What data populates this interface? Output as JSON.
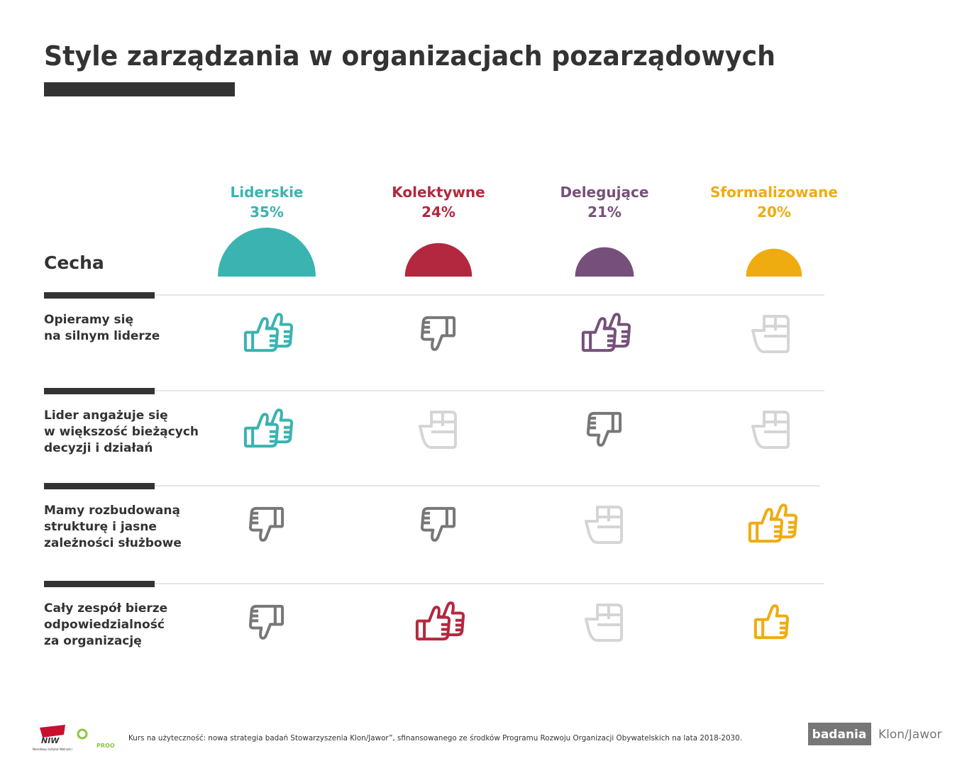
{
  "header": {
    "title": "Style zarządzania w organizacjach pozarządowych"
  },
  "styles": [
    {
      "name": "Liderskie",
      "value": 35,
      "value_label": "35%",
      "color": "#3ab3b1"
    },
    {
      "name": "Kolektywne",
      "value": 24,
      "value_label": "24%",
      "color": "#b3283e"
    },
    {
      "name": "Delegujące",
      "value": 21,
      "value_label": "21%",
      "color": "#76507a"
    },
    {
      "name": "Sformalizowane",
      "value": 20,
      "value_label": "20%",
      "color": "#eeac10"
    }
  ],
  "feature_header": "Cecha",
  "rows": [
    {
      "label": [
        "Opieramy się",
        "na silnym liderze"
      ],
      "marks": [
        "up2",
        "down",
        "up2",
        "neutral"
      ]
    },
    {
      "label": [
        "Lider angażuje się",
        "w większość bieżących",
        "decyzji i działań"
      ],
      "marks": [
        "up2",
        "neutral",
        "down",
        "neutral"
      ]
    },
    {
      "label": [
        "Mamy rozbudowaną",
        "strukturę i jasne",
        "zależności służbowe"
      ],
      "marks": [
        "down",
        "down",
        "neutral",
        "up2"
      ]
    },
    {
      "label": [
        "Cały zespół  bierze",
        "odpowiedzialność",
        "za organizację"
      ],
      "marks": [
        "down",
        "up2",
        "neutral",
        "up1"
      ]
    }
  ],
  "footer": {
    "note": "Kurs na użyteczność: nowa strategia badań Stowarzyszenia Klon/Jawor”, sfinansowanego ze środków Programu Rozwoju Organizacji Obywatelskich na lata 2018-2030.",
    "niw": "NIW",
    "niw_name": "Narodowy Instytut Wolności",
    "proo": "PROO",
    "badania": "badania",
    "klon": "Klon/Jawor"
  }
}
